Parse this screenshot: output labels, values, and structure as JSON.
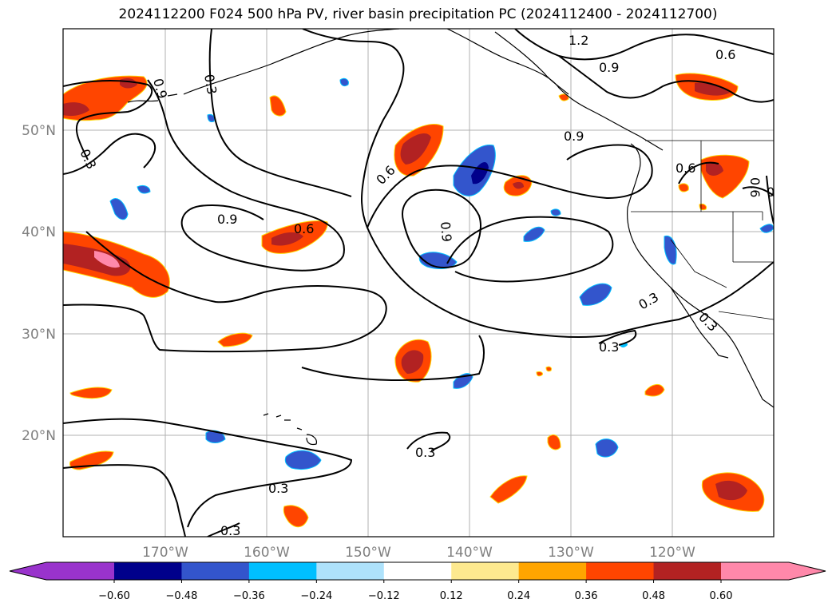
{
  "title": "2024112200 F024 500 hPa PV, river basin precipitation PC (2024112400 - 2024112700)",
  "map": {
    "lon_range": [
      -180,
      -110
    ],
    "lat_range": [
      10,
      60
    ],
    "lat_labels": [
      "50°N",
      "40°N",
      "30°N",
      "20°N"
    ],
    "lon_labels": [
      "170°W",
      "160°W",
      "150°W",
      "140°W",
      "130°W",
      "120°W"
    ],
    "contour_labels": [
      "1.2",
      "0.6",
      "0.9",
      "0.9",
      "0.3",
      "0.3",
      "0.9",
      "0.6",
      "0.6",
      "0.6",
      "0.9",
      "0.9",
      "0.3",
      "0.6",
      "0.3",
      "0.3",
      "0.3",
      "0.3",
      "0.3",
      "0.3"
    ]
  },
  "colorbar": {
    "colors": [
      "#9933cc",
      "#00008b",
      "#3355cc",
      "#00bfff",
      "#aee2fb",
      "#ffffff",
      "#fde98f",
      "#ffa500",
      "#ff4500",
      "#b22222",
      "#ff88aa"
    ],
    "ticks": [
      "−0.60",
      "−0.48",
      "−0.36",
      "−0.24",
      "−0.12",
      "0.12",
      "0.24",
      "0.36",
      "0.48",
      "0.60"
    ]
  }
}
